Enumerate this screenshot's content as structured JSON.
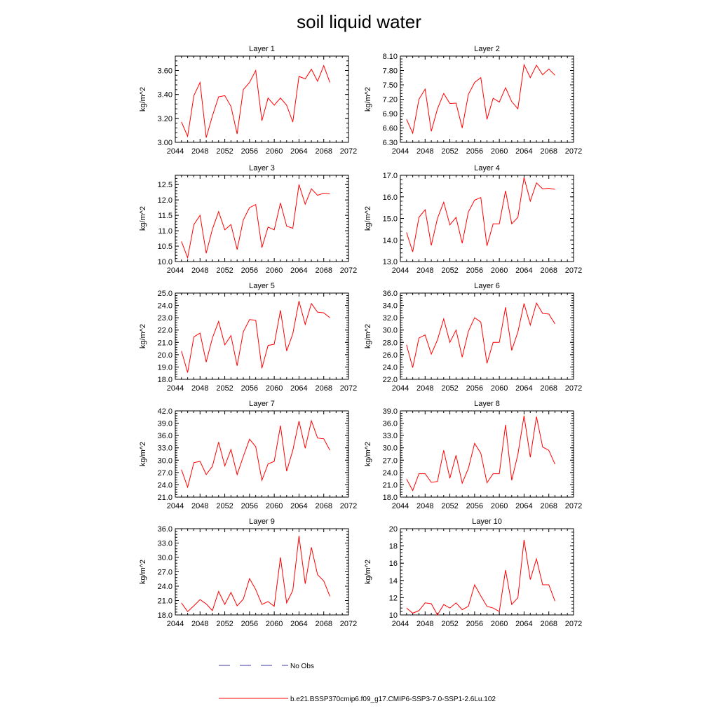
{
  "title": "soil liquid water",
  "legend": {
    "entries": [
      {
        "label": "No Obs",
        "color": "#3a3aa0",
        "dash": true
      },
      {
        "label": "b.e21.BSSP370cmip6.f09_g17.CMIP6-SSP3-7.0-SSP1-2.6Lu.102",
        "color": "#ff0000",
        "dash": false
      }
    ]
  },
  "chart_data": [
    {
      "type": "line",
      "title": "Layer 1",
      "ylabel": "kg/m^2",
      "xlim": [
        2044,
        2072
      ],
      "xticks": [
        "2044",
        "2048",
        "2052",
        "2056",
        "2060",
        "2064",
        "2068",
        "2072"
      ],
      "ylim": [
        3.0,
        3.72
      ],
      "yticks": [
        "3.00",
        "3.20",
        "3.40",
        "3.60"
      ],
      "x": [
        2045,
        2046,
        2047,
        2048,
        2049,
        2050,
        2051,
        2052,
        2053,
        2054,
        2055,
        2056,
        2057,
        2058,
        2059,
        2060,
        2061,
        2062,
        2063,
        2064,
        2065,
        2066,
        2067,
        2068,
        2069
      ],
      "series": [
        {
          "color": "#ff0000",
          "values": [
            3.17,
            3.05,
            3.39,
            3.5,
            3.04,
            3.22,
            3.38,
            3.39,
            3.3,
            3.07,
            3.44,
            3.5,
            3.6,
            3.18,
            3.37,
            3.31,
            3.37,
            3.31,
            3.17,
            3.55,
            3.53,
            3.61,
            3.51,
            3.64,
            3.5
          ]
        }
      ]
    },
    {
      "type": "line",
      "title": "Layer 2",
      "ylabel": "kg/m^2",
      "xlim": [
        2044,
        2072
      ],
      "xticks": [
        "2044",
        "2048",
        "2052",
        "2056",
        "2060",
        "2064",
        "2068",
        "2072"
      ],
      "ylim": [
        6.3,
        8.1
      ],
      "yticks": [
        "6.30",
        "6.60",
        "6.90",
        "7.20",
        "7.50",
        "7.80",
        "8.10"
      ],
      "x": [
        2045,
        2046,
        2047,
        2048,
        2049,
        2050,
        2051,
        2052,
        2053,
        2054,
        2055,
        2056,
        2057,
        2058,
        2059,
        2060,
        2061,
        2062,
        2063,
        2064,
        2065,
        2066,
        2067,
        2068,
        2069
      ],
      "series": [
        {
          "color": "#ff0000",
          "values": [
            6.78,
            6.49,
            7.2,
            7.41,
            6.53,
            7.0,
            7.32,
            7.11,
            7.12,
            6.6,
            7.3,
            7.55,
            7.65,
            6.78,
            7.22,
            7.14,
            7.44,
            7.15,
            7.0,
            7.92,
            7.65,
            7.91,
            7.71,
            7.83,
            7.7
          ]
        }
      ]
    },
    {
      "type": "line",
      "title": "Layer 3",
      "ylabel": "kg/m^2",
      "xlim": [
        2044,
        2072
      ],
      "xticks": [
        "2044",
        "2048",
        "2052",
        "2056",
        "2060",
        "2064",
        "2068",
        "2072"
      ],
      "ylim": [
        10.0,
        12.8
      ],
      "yticks": [
        "10.0",
        "10.5",
        "11.0",
        "11.5",
        "12.0",
        "12.5"
      ],
      "x": [
        2045,
        2046,
        2047,
        2048,
        2049,
        2050,
        2051,
        2052,
        2053,
        2054,
        2055,
        2056,
        2057,
        2058,
        2059,
        2060,
        2061,
        2062,
        2063,
        2064,
        2065,
        2066,
        2067,
        2068,
        2069
      ],
      "series": [
        {
          "color": "#ff0000",
          "values": [
            10.65,
            10.12,
            11.2,
            11.5,
            10.27,
            11.05,
            11.62,
            11.03,
            11.2,
            10.39,
            11.35,
            11.75,
            11.85,
            10.45,
            11.12,
            11.03,
            11.9,
            11.15,
            11.08,
            12.5,
            11.86,
            12.36,
            12.15,
            12.22,
            12.2
          ]
        }
      ]
    },
    {
      "type": "line",
      "title": "Layer 4",
      "ylabel": "kg/m^2",
      "xlim": [
        2044,
        2072
      ],
      "xticks": [
        "2044",
        "2048",
        "2052",
        "2056",
        "2060",
        "2064",
        "2068",
        "2072"
      ],
      "ylim": [
        13.0,
        17.0
      ],
      "yticks": [
        "13.0",
        "14.0",
        "15.0",
        "16.0",
        "17.0"
      ],
      "x": [
        2045,
        2046,
        2047,
        2048,
        2049,
        2050,
        2051,
        2052,
        2053,
        2054,
        2055,
        2056,
        2057,
        2058,
        2059,
        2060,
        2061,
        2062,
        2063,
        2064,
        2065,
        2066,
        2067,
        2068,
        2069
      ],
      "series": [
        {
          "color": "#ff0000",
          "values": [
            14.35,
            13.45,
            15.05,
            15.4,
            13.75,
            15.0,
            15.75,
            14.7,
            15.05,
            13.85,
            15.3,
            15.85,
            15.97,
            13.73,
            14.75,
            14.75,
            16.28,
            14.75,
            15.05,
            16.9,
            15.8,
            16.65,
            16.37,
            16.4,
            16.35
          ]
        }
      ]
    },
    {
      "type": "line",
      "title": "Layer 5",
      "ylabel": "kg/m^2",
      "xlim": [
        2044,
        2072
      ],
      "xticks": [
        "2044",
        "2048",
        "2052",
        "2056",
        "2060",
        "2064",
        "2068",
        "2072"
      ],
      "ylim": [
        18.0,
        25.0
      ],
      "yticks": [
        "18.0",
        "19.0",
        "20.0",
        "21.0",
        "22.0",
        "23.0",
        "24.0",
        "25.0"
      ],
      "x": [
        2045,
        2046,
        2047,
        2048,
        2049,
        2050,
        2051,
        2052,
        2053,
        2054,
        2055,
        2056,
        2057,
        2058,
        2059,
        2060,
        2061,
        2062,
        2063,
        2064,
        2065,
        2066,
        2067,
        2068,
        2069
      ],
      "series": [
        {
          "color": "#ff0000",
          "values": [
            20.3,
            18.55,
            21.45,
            21.75,
            19.4,
            21.35,
            22.7,
            20.8,
            21.55,
            19.1,
            21.85,
            22.85,
            22.8,
            18.9,
            20.75,
            20.85,
            23.6,
            20.3,
            21.7,
            24.35,
            22.45,
            24.15,
            23.45,
            23.4,
            23.0
          ]
        }
      ]
    },
    {
      "type": "line",
      "title": "Layer 6",
      "ylabel": "kg/m^2",
      "xlim": [
        2044,
        2072
      ],
      "xticks": [
        "2044",
        "2048",
        "2052",
        "2056",
        "2060",
        "2064",
        "2068",
        "2072"
      ],
      "ylim": [
        22.0,
        36.0
      ],
      "yticks": [
        "22.0",
        "24.0",
        "26.0",
        "28.0",
        "30.0",
        "32.0",
        "34.0",
        "36.0"
      ],
      "x": [
        2045,
        2046,
        2047,
        2048,
        2049,
        2050,
        2051,
        2052,
        2053,
        2054,
        2055,
        2056,
        2057,
        2058,
        2059,
        2060,
        2061,
        2062,
        2063,
        2064,
        2065,
        2066,
        2067,
        2068,
        2069
      ],
      "series": [
        {
          "color": "#ff0000",
          "values": [
            27.6,
            23.9,
            28.7,
            29.2,
            26.1,
            28.4,
            31.8,
            28.0,
            30.0,
            25.6,
            29.8,
            32.0,
            31.3,
            24.6,
            28.0,
            28.0,
            33.7,
            26.7,
            29.7,
            34.3,
            30.8,
            34.4,
            32.7,
            32.6,
            31.0
          ]
        }
      ]
    },
    {
      "type": "line",
      "title": "Layer 7",
      "ylabel": "kg/m^2",
      "xlim": [
        2044,
        2072
      ],
      "xticks": [
        "2044",
        "2048",
        "2052",
        "2056",
        "2060",
        "2064",
        "2068",
        "2072"
      ],
      "ylim": [
        21.0,
        42.0
      ],
      "yticks": [
        "21.0",
        "24.0",
        "27.0",
        "30.0",
        "33.0",
        "36.0",
        "39.0",
        "42.0"
      ],
      "x": [
        2045,
        2046,
        2047,
        2048,
        2049,
        2050,
        2051,
        2052,
        2053,
        2054,
        2055,
        2056,
        2057,
        2058,
        2059,
        2060,
        2061,
        2062,
        2063,
        2064,
        2065,
        2066,
        2067,
        2068,
        2069
      ],
      "series": [
        {
          "color": "#ff0000",
          "values": [
            27.7,
            23.4,
            29.4,
            29.7,
            26.5,
            28.5,
            34.4,
            28.6,
            32.6,
            26.5,
            30.9,
            35.1,
            33.3,
            25.1,
            29.1,
            29.7,
            38.4,
            27.3,
            32.4,
            39.5,
            32.9,
            39.6,
            35.4,
            35.2,
            32.4
          ]
        }
      ]
    },
    {
      "type": "line",
      "title": "Layer 8",
      "ylabel": "kg/m^2",
      "xlim": [
        2044,
        2072
      ],
      "xticks": [
        "2044",
        "2048",
        "2052",
        "2056",
        "2060",
        "2064",
        "2068",
        "2072"
      ],
      "ylim": [
        18.0,
        39.0
      ],
      "yticks": [
        "18.0",
        "21.0",
        "24.0",
        "27.0",
        "30.0",
        "33.0",
        "36.0",
        "39.0"
      ],
      "x": [
        2045,
        2046,
        2047,
        2048,
        2049,
        2050,
        2051,
        2052,
        2053,
        2054,
        2055,
        2056,
        2057,
        2058,
        2059,
        2060,
        2061,
        2062,
        2063,
        2064,
        2065,
        2066,
        2067,
        2068,
        2069
      ],
      "series": [
        {
          "color": "#ff0000",
          "values": [
            22.4,
            19.6,
            23.7,
            23.7,
            21.6,
            21.8,
            29.4,
            22.6,
            28.2,
            21.4,
            25.0,
            31.1,
            28.7,
            21.5,
            23.7,
            23.7,
            35.6,
            22.1,
            28.4,
            37.8,
            27.7,
            37.6,
            30.2,
            29.4,
            26.0
          ]
        }
      ]
    },
    {
      "type": "line",
      "title": "Layer 9",
      "ylabel": "kg/m^2",
      "xlim": [
        2044,
        2072
      ],
      "xticks": [
        "2044",
        "2048",
        "2052",
        "2056",
        "2060",
        "2064",
        "2068",
        "2072"
      ],
      "ylim": [
        18.0,
        36.0
      ],
      "yticks": [
        "18.0",
        "21.0",
        "24.0",
        "27.0",
        "30.0",
        "33.0",
        "36.0"
      ],
      "x": [
        2045,
        2046,
        2047,
        2048,
        2049,
        2050,
        2051,
        2052,
        2053,
        2054,
        2055,
        2056,
        2057,
        2058,
        2059,
        2060,
        2061,
        2062,
        2063,
        2064,
        2065,
        2066,
        2067,
        2068,
        2069
      ],
      "series": [
        {
          "color": "#ff0000",
          "values": [
            20.5,
            18.7,
            19.9,
            21.2,
            20.3,
            18.9,
            22.9,
            20.2,
            22.7,
            19.9,
            21.3,
            25.6,
            23.3,
            20.2,
            20.8,
            19.8,
            30.0,
            20.5,
            23.1,
            34.5,
            24.5,
            32.1,
            26.4,
            25.1,
            21.9
          ]
        }
      ]
    },
    {
      "type": "line",
      "title": "Layer 10",
      "ylabel": "kg/m^2",
      "xlim": [
        2044,
        2072
      ],
      "xticks": [
        "2044",
        "2048",
        "2052",
        "2056",
        "2060",
        "2064",
        "2068",
        "2072"
      ],
      "ylim": [
        10,
        20
      ],
      "yticks": [
        "10",
        "12",
        "14",
        "16",
        "18",
        "20"
      ],
      "x": [
        2045,
        2046,
        2047,
        2048,
        2049,
        2050,
        2051,
        2052,
        2053,
        2054,
        2055,
        2056,
        2057,
        2058,
        2059,
        2060,
        2061,
        2062,
        2063,
        2064,
        2065,
        2066,
        2067,
        2068,
        2069
      ],
      "series": [
        {
          "color": "#ff0000",
          "values": [
            10.8,
            10.2,
            10.5,
            11.4,
            11.3,
            10.0,
            11.2,
            10.8,
            11.4,
            10.6,
            11.0,
            13.5,
            12.2,
            11.0,
            10.8,
            10.4,
            15.2,
            11.2,
            12.0,
            18.7,
            14.1,
            16.5,
            13.5,
            13.5,
            11.6
          ]
        }
      ]
    }
  ]
}
